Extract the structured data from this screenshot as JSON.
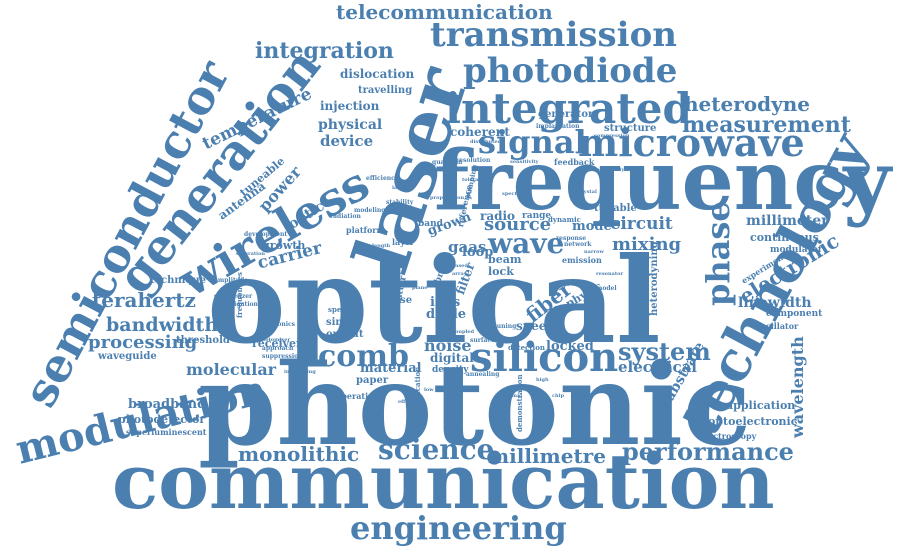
{
  "colors": {
    "word": "#4a7fb0",
    "background": "#ffffff"
  },
  "words": [
    {
      "id": "photonic",
      "text": "photonic"
    },
    {
      "id": "optical",
      "text": "optical"
    },
    {
      "id": "frequency",
      "text": "frequency"
    },
    {
      "id": "communication",
      "text": "communication"
    },
    {
      "id": "laser",
      "text": "laser"
    },
    {
      "id": "technology",
      "text": "technology"
    },
    {
      "id": "semiconductor",
      "text": "semiconductor"
    },
    {
      "id": "generation",
      "text": "generation"
    },
    {
      "id": "wireless",
      "text": "wireless"
    },
    {
      "id": "integrated",
      "text": "integrated"
    },
    {
      "id": "silicon",
      "text": "silicon"
    },
    {
      "id": "microwave",
      "text": "microwave"
    },
    {
      "id": "modulation",
      "text": "modulation"
    },
    {
      "id": "transmission",
      "text": "transmission"
    },
    {
      "id": "photodiode",
      "text": "photodiode"
    },
    {
      "id": "engineering",
      "text": "engineering"
    },
    {
      "id": "signal",
      "text": "signal"
    },
    {
      "id": "science",
      "text": "science"
    },
    {
      "id": "performance",
      "text": "performance"
    },
    {
      "id": "phase",
      "text": "phase"
    },
    {
      "id": "comb",
      "text": "comb"
    },
    {
      "id": "wave",
      "text": "wave"
    },
    {
      "id": "measurement",
      "text": "measurement"
    },
    {
      "id": "system",
      "text": "system"
    },
    {
      "id": "integration",
      "text": "integration"
    },
    {
      "id": "electronic",
      "text": "electronic"
    },
    {
      "id": "telecommunication",
      "text": "telecommunication"
    },
    {
      "id": "terahertz",
      "text": "terahertz"
    },
    {
      "id": "monolithic",
      "text": "monolithic"
    },
    {
      "id": "millimetre",
      "text": "millimetre"
    },
    {
      "id": "heterodyne",
      "text": "heterodyne"
    },
    {
      "id": "bandwidth",
      "text": "bandwidth"
    },
    {
      "id": "processing",
      "text": "processing"
    },
    {
      "id": "wavelength",
      "text": "wavelength"
    },
    {
      "id": "fiber",
      "text": "fiber"
    },
    {
      "id": "source",
      "text": "source"
    },
    {
      "id": "mixing",
      "text": "mixing"
    },
    {
      "id": "temperature",
      "text": "temperature"
    },
    {
      "id": "molecular",
      "text": "molecular"
    },
    {
      "id": "electrical",
      "text": "electrical"
    },
    {
      "id": "noise",
      "text": "noise"
    },
    {
      "id": "circuit",
      "text": "circuit"
    },
    {
      "id": "carrier",
      "text": "carrier"
    },
    {
      "id": "power",
      "text": "power"
    },
    {
      "id": "device",
      "text": "device"
    },
    {
      "id": "physical",
      "text": "physical"
    },
    {
      "id": "millimeter",
      "text": "millimeter"
    },
    {
      "id": "substrate",
      "text": "substrate"
    },
    {
      "id": "linewidth",
      "text": "linewidth"
    },
    {
      "id": "material",
      "text": "material"
    },
    {
      "id": "broadband",
      "text": "broadband"
    },
    {
      "id": "photodetector",
      "text": "photodetector"
    },
    {
      "id": "application",
      "text": "application"
    },
    {
      "id": "optoelectronic",
      "text": "optoelectronic"
    },
    {
      "id": "dislocation",
      "text": "dislocation"
    },
    {
      "id": "coherent",
      "text": "coherent"
    },
    {
      "id": "injection",
      "text": "injection"
    },
    {
      "id": "travelling",
      "text": "travelling"
    },
    {
      "id": "generator",
      "text": "generator"
    },
    {
      "id": "antenna",
      "text": "antenna"
    },
    {
      "id": "tuneable",
      "text": "tuneable"
    },
    {
      "id": "continuous",
      "text": "continuous"
    },
    {
      "id": "gaas",
      "text": "gaas"
    },
    {
      "id": "loop",
      "text": "loop"
    },
    {
      "id": "mode",
      "text": "mode"
    },
    {
      "id": "radio",
      "text": "radio"
    },
    {
      "id": "beam",
      "text": "beam"
    },
    {
      "id": "lock",
      "text": "lock"
    },
    {
      "id": "inas",
      "text": "inas"
    },
    {
      "id": "diode",
      "text": "diode"
    },
    {
      "id": "locked",
      "text": "locked"
    },
    {
      "id": "digital",
      "text": "digital"
    },
    {
      "id": "speed",
      "text": "speed"
    },
    {
      "id": "receiver",
      "text": "receiver"
    },
    {
      "id": "threshold",
      "text": "threshold"
    },
    {
      "id": "waveguide",
      "text": "waveguide"
    },
    {
      "id": "technique",
      "text": "technique"
    },
    {
      "id": "growth",
      "text": "growth"
    },
    {
      "id": "optic",
      "text": "optic"
    },
    {
      "id": "superluminescent",
      "text": "superluminescent"
    },
    {
      "id": "spectroscopy",
      "text": "spectroscopy"
    },
    {
      "id": "heterodyning",
      "text": "heterodyning"
    },
    {
      "id": "oscillator",
      "text": "oscillator"
    },
    {
      "id": "component",
      "text": "component"
    },
    {
      "id": "modulator",
      "text": "modulator"
    },
    {
      "id": "experimental",
      "text": "experimental"
    },
    {
      "id": "tunable",
      "text": "tunable"
    },
    {
      "id": "structure",
      "text": "structure"
    },
    {
      "id": "physic",
      "text": "physic"
    },
    {
      "id": "grown",
      "text": "grown"
    },
    {
      "id": "single",
      "text": "single"
    },
    {
      "id": "output",
      "text": "output"
    },
    {
      "id": "paper",
      "text": "paper"
    },
    {
      "id": "pulse",
      "text": "pulse"
    },
    {
      "id": "transmitter",
      "text": "transmitter"
    },
    {
      "id": "range",
      "text": "range"
    },
    {
      "id": "emission",
      "text": "emission"
    },
    {
      "id": "filter",
      "text": "filter"
    },
    {
      "id": "density",
      "text": "density"
    },
    {
      "id": "band",
      "text": "band"
    },
    {
      "id": "platform",
      "text": "platform"
    },
    {
      "id": "layer",
      "text": "layer"
    },
    {
      "id": "implantation",
      "text": "implantation"
    },
    {
      "id": "resolution",
      "text": "resolution"
    },
    {
      "id": "feedback",
      "text": "feedback"
    },
    {
      "id": "efficiency",
      "text": "efficiency"
    },
    {
      "id": "stability",
      "text": "stability"
    },
    {
      "id": "amplifier",
      "text": "amplifier"
    },
    {
      "id": "response",
      "text": "response"
    },
    {
      "id": "tuning",
      "text": "tuning"
    },
    {
      "id": "detection",
      "text": "detection"
    },
    {
      "id": "fabrication",
      "text": "fabrication"
    },
    {
      "id": "demonstration",
      "text": "demonstration"
    },
    {
      "id": "spectral",
      "text": "spectral"
    },
    {
      "id": "network",
      "text": "network"
    },
    {
      "id": "dynamic",
      "text": "dynamic"
    },
    {
      "id": "bridge",
      "text": "bridge"
    },
    {
      "id": "operating",
      "text": "operating"
    },
    {
      "id": "approach",
      "text": "approach"
    },
    {
      "id": "suppression",
      "text": "suppression"
    },
    {
      "id": "photomixer",
      "text": "photomixer"
    },
    {
      "id": "saturation",
      "text": "saturation"
    },
    {
      "id": "development",
      "text": "development"
    },
    {
      "id": "amplitude",
      "text": "amplitude"
    },
    {
      "id": "synthesizer",
      "text": "synthesizer"
    },
    {
      "id": "quantum",
      "text": "quantum"
    },
    {
      "id": "reference",
      "text": "reference"
    },
    {
      "id": "frequencies",
      "text": "frequencies"
    },
    {
      "id": "compression",
      "text": "compression"
    },
    {
      "id": "surface",
      "text": "surface"
    },
    {
      "id": "integrating",
      "text": "integrating"
    },
    {
      "id": "modeling",
      "text": "modeling"
    },
    {
      "id": "annealing",
      "text": "annealing"
    },
    {
      "id": "photonics",
      "text": "photonics"
    },
    {
      "id": "length",
      "text": "length"
    },
    {
      "id": "lasing",
      "text": "lasing"
    },
    {
      "id": "radiation",
      "text": "radiation"
    },
    {
      "id": "sensitivity",
      "text": "sensitivity"
    },
    {
      "id": "investigation",
      "text": "investigation"
    },
    {
      "id": "model",
      "text": "model"
    },
    {
      "id": "pumping",
      "text": "pumping"
    },
    {
      "id": "distributed",
      "text": "distributed"
    },
    {
      "id": "crystal",
      "text": "crystal"
    },
    {
      "id": "tolerance",
      "text": "tolerance"
    },
    {
      "id": "monolithically",
      "text": "monolithically"
    },
    {
      "id": "propagation",
      "text": "propagation"
    },
    {
      "id": "resonator",
      "text": "resonator"
    },
    {
      "id": "spectrum",
      "text": "spectrum"
    },
    {
      "id": "coupled",
      "text": "coupled"
    },
    {
      "id": "narrow",
      "text": "narrow"
    },
    {
      "id": "phased",
      "text": "phased"
    },
    {
      "id": "array",
      "text": "array"
    },
    {
      "id": "plane",
      "text": "plane"
    },
    {
      "id": "low",
      "text": "low"
    },
    {
      "id": "high",
      "text": "high"
    },
    {
      "id": "effect",
      "text": "effect"
    },
    {
      "id": "thermal",
      "text": "thermal"
    },
    {
      "id": "chip",
      "text": "chip"
    }
  ]
}
